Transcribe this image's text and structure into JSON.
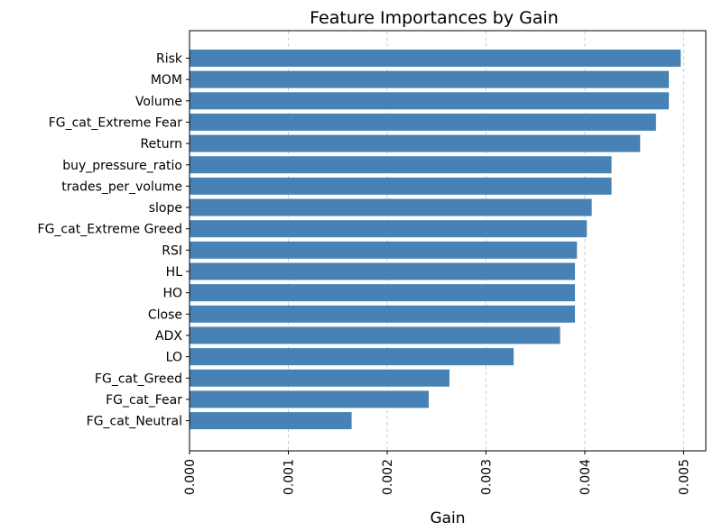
{
  "chart_data": {
    "type": "bar",
    "orientation": "horizontal",
    "title": "Feature Importances by Gain",
    "xlabel": "Gain",
    "ylabel": "",
    "xlim": [
      0,
      0.00525
    ],
    "xticks": [
      0.0,
      0.001,
      0.002,
      0.003,
      0.004,
      0.005
    ],
    "xtick_labels": [
      "0.000",
      "0.001",
      "0.002",
      "0.003",
      "0.004",
      "0.005"
    ],
    "grid": "x-dashed",
    "bar_color": "#4682b4",
    "categories": [
      "Risk",
      "MOM",
      "Volume",
      "FG_cat_Extreme Fear",
      "Return",
      "buy_pressure_ratio",
      "trades_per_volume",
      "slope",
      "FG_cat_Extreme Greed",
      "RSI",
      "HL",
      "HO",
      "Close",
      "ADX",
      "LO",
      "FG_cat_Greed",
      "FG_cat_Fear",
      "FG_cat_Neutral"
    ],
    "values": [
      0.00497,
      0.00485,
      0.00485,
      0.00472,
      0.00456,
      0.00427,
      0.00427,
      0.00407,
      0.00402,
      0.00392,
      0.0039,
      0.0039,
      0.0039,
      0.00375,
      0.00328,
      0.00263,
      0.00242,
      0.00164
    ]
  }
}
